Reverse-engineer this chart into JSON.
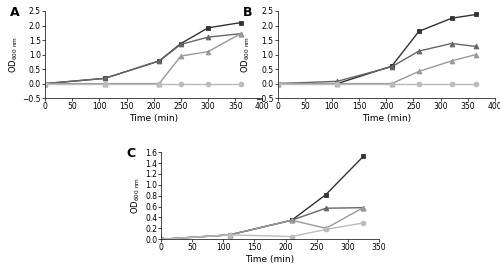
{
  "panel_A": {
    "label": "A",
    "time_points": [
      0,
      110,
      210,
      250,
      300,
      360
    ],
    "series": [
      {
        "values": [
          0.0,
          0.18,
          0.78,
          1.38,
          1.92,
          2.1
        ],
        "color": "#333333",
        "marker": "s"
      },
      {
        "values": [
          0.0,
          0.18,
          0.78,
          1.35,
          1.6,
          1.72
        ],
        "color": "#666666",
        "marker": "^"
      },
      {
        "values": [
          0.0,
          0.0,
          0.0,
          0.95,
          1.1,
          1.72
        ],
        "color": "#999999",
        "marker": "^"
      },
      {
        "values": [
          0.0,
          0.0,
          0.0,
          0.0,
          0.0,
          0.0
        ],
        "color": "#bbbbbb",
        "marker": "o"
      }
    ],
    "xlabel": "Time (min)",
    "ylim": [
      -0.5,
      2.5
    ],
    "yticks": [
      -0.5,
      0.0,
      0.5,
      1.0,
      1.5,
      2.0,
      2.5
    ],
    "xlim": [
      0,
      400
    ],
    "xticks": [
      0,
      50,
      100,
      150,
      200,
      250,
      300,
      350,
      400
    ]
  },
  "panel_B": {
    "label": "B",
    "time_points": [
      0,
      110,
      210,
      260,
      320,
      365
    ],
    "series": [
      {
        "values": [
          0.0,
          0.0,
          0.6,
          1.8,
          2.25,
          2.38
        ],
        "color": "#333333",
        "marker": "s"
      },
      {
        "values": [
          0.0,
          0.08,
          0.58,
          1.12,
          1.38,
          1.28
        ],
        "color": "#666666",
        "marker": "^"
      },
      {
        "values": [
          0.0,
          0.0,
          0.0,
          0.42,
          0.78,
          1.0
        ],
        "color": "#999999",
        "marker": "^"
      },
      {
        "values": [
          0.0,
          0.0,
          0.0,
          0.0,
          0.0,
          0.0
        ],
        "color": "#bbbbbb",
        "marker": "o"
      }
    ],
    "xlabel": "Time (min)",
    "ylim": [
      -0.5,
      2.5
    ],
    "yticks": [
      -0.5,
      0.0,
      0.5,
      1.0,
      1.5,
      2.0,
      2.5
    ],
    "xlim": [
      0,
      400
    ],
    "xticks": [
      0,
      50,
      100,
      150,
      200,
      250,
      300,
      350,
      400
    ]
  },
  "panel_C": {
    "label": "C",
    "time_points": [
      0,
      110,
      210,
      265,
      325
    ],
    "series": [
      {
        "values": [
          0.0,
          0.08,
          0.35,
          0.82,
          1.52
        ],
        "color": "#333333",
        "marker": "s"
      },
      {
        "values": [
          0.0,
          0.08,
          0.35,
          0.57,
          0.58
        ],
        "color": "#666666",
        "marker": "^"
      },
      {
        "values": [
          0.0,
          0.08,
          0.35,
          0.2,
          0.58
        ],
        "color": "#999999",
        "marker": "^"
      },
      {
        "values": [
          0.0,
          0.08,
          0.05,
          0.18,
          0.3
        ],
        "color": "#bbbbbb",
        "marker": "o"
      }
    ],
    "xlabel": "Time (min)",
    "ylim": [
      0.0,
      1.6
    ],
    "yticks": [
      0.0,
      0.2,
      0.4,
      0.6,
      0.8,
      1.0,
      1.2,
      1.4,
      1.6
    ],
    "xlim": [
      0,
      350
    ],
    "xticks": [
      0,
      50,
      100,
      150,
      200,
      250,
      300,
      350
    ]
  },
  "ylabel": "OD",
  "ylabel_sub": "600 nm",
  "ms": 3.5,
  "lw": 1.0,
  "tick_fs": 5.5,
  "xlabel_fs": 6.5,
  "label_fs": 9
}
